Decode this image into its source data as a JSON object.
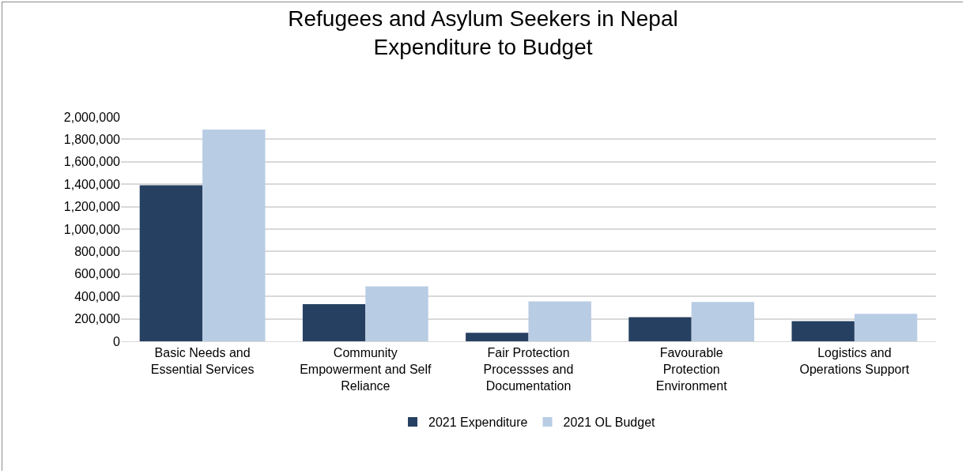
{
  "chart_data": {
    "type": "bar",
    "title": "Refugees and Asylum Seekers in Nepal",
    "subtitle": "Expenditure to Budget",
    "categories": [
      "Basic Needs and Essential Services",
      "Community Empowerment and Self Reliance",
      "Fair Protection Processses and Documentation",
      "Favourable Protection Environment",
      "Logistics and Operations Support"
    ],
    "series": [
      {
        "name": "2021 Expenditure",
        "color": "#264061",
        "values": [
          1390000,
          331000,
          76000,
          214000,
          179000
        ]
      },
      {
        "name": "2021 OL Budget",
        "color": "#b8cce4",
        "values": [
          1888000,
          490000,
          355000,
          350000,
          244000
        ]
      }
    ],
    "ylim": [
      0,
      2000000
    ],
    "yticks": [
      {
        "value": 0,
        "label": "0"
      },
      {
        "value": 200000,
        "label": "200,000"
      },
      {
        "value": 400000,
        "label": "400,000"
      },
      {
        "value": 600000,
        "label": "600,000"
      },
      {
        "value": 800000,
        "label": "800,000"
      },
      {
        "value": 1000000,
        "label": "1,000,000"
      },
      {
        "value": 1200000,
        "label": "1,200,000"
      },
      {
        "value": 1400000,
        "label": "1,400,000"
      },
      {
        "value": 1600000,
        "label": "1,600,000"
      },
      {
        "value": 1800000,
        "label": "1,800,000"
      },
      {
        "value": 2000000,
        "label": "2,000,000"
      }
    ],
    "grid": "y",
    "legend": "bottom"
  }
}
